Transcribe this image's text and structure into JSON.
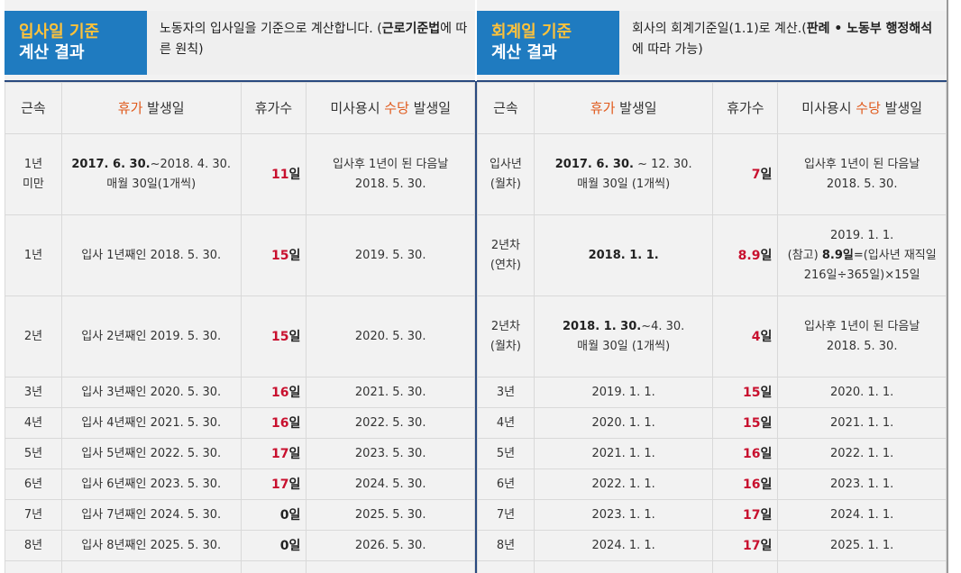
{
  "left": {
    "title_accent": "입사일 기준",
    "title_rest": "계산 결과",
    "desc_pre": "노동자의 입사일을 기준으로 계산합니다. (",
    "desc_bold": "근로기준법",
    "desc_post": "에 따른 원칙)",
    "headers": {
      "tenure": "근속",
      "leave_date_red": "휴가",
      "leave_date_rest": " 발생일",
      "days": "휴가수",
      "pay_pre": "미사용시 ",
      "pay_red": "수당",
      "pay_post": " 발생일"
    },
    "rows": [
      {
        "tenure": [
          "1년",
          "미만"
        ],
        "date_bold": "2017. 6. 30.",
        "date_rest": "~2018. 4. 30.",
        "date_line2": "매월 30일(1개씩)",
        "days": "11",
        "unit": "일",
        "pay": [
          "입사후 1년이 된 다음날",
          "2018. 5. 30."
        ]
      },
      {
        "tenure": [
          "1년"
        ],
        "date": "입사 1년째인 2018. 5. 30.",
        "days": "15",
        "unit": "일",
        "pay": [
          "2019. 5. 30."
        ]
      },
      {
        "tenure": [
          "2년"
        ],
        "date": "입사 2년째인 2019. 5. 30.",
        "days": "15",
        "unit": "일",
        "pay": [
          "2020. 5. 30."
        ]
      },
      {
        "tenure": [
          "3년"
        ],
        "date": "입사 3년째인 2020. 5. 30.",
        "days": "16",
        "unit": "일",
        "pay": [
          "2021. 5. 30."
        ]
      },
      {
        "tenure": [
          "4년"
        ],
        "date": "입사 4년째인 2021. 5. 30.",
        "days": "16",
        "unit": "일",
        "pay": [
          "2022. 5. 30."
        ]
      },
      {
        "tenure": [
          "5년"
        ],
        "date": "입사 5년째인 2022. 5. 30.",
        "days": "17",
        "unit": "일",
        "pay": [
          "2023. 5. 30."
        ]
      },
      {
        "tenure": [
          "6년"
        ],
        "date": "입사 6년째인 2023. 5. 30.",
        "days": "17",
        "unit": "일",
        "pay": [
          "2024. 5. 30."
        ]
      },
      {
        "tenure": [
          "7년"
        ],
        "date": "입사 7년째인 2024. 5. 30.",
        "days": "0",
        "unit": "일",
        "pay": [
          "2025. 5. 30."
        ]
      },
      {
        "tenure": [
          "8년"
        ],
        "date": "입사 8년째인 2025. 5. 30.",
        "days": "0",
        "unit": "일",
        "pay": [
          "2026. 5. 30."
        ]
      },
      {
        "tenure": [
          ""
        ],
        "date": "",
        "days": "",
        "unit": "",
        "pay": [
          ""
        ]
      }
    ]
  },
  "right": {
    "title_accent": "회계일 기준",
    "title_rest": "계산 결과",
    "desc_pre": "회사의 회계기준일(1.1)로 계산.(",
    "desc_bold": "판례 • 노동부 행정해석",
    "desc_post": "에 따라 가능)",
    "headers": {
      "tenure": "근속",
      "leave_date_red": "휴가",
      "leave_date_rest": " 발생일",
      "days": "휴가수",
      "pay_pre": "미사용시 ",
      "pay_red": "수당",
      "pay_post": " 발생일"
    },
    "rows": [
      {
        "tenure": [
          "입사년",
          "(월차)"
        ],
        "date_bold": "2017. 6. 30.",
        "date_rest": " ~ 12. 30.",
        "date_line2": "매월 30일 (1개씩)",
        "days": "7",
        "unit": "일",
        "pay": [
          "입사후 1년이 된 다음날",
          "2018. 5. 30."
        ]
      },
      {
        "tenure": [
          "2년차",
          "(연차)"
        ],
        "date_bold": "2018. 1. 1.",
        "date_rest": "",
        "date_line2": "",
        "days": "8.9",
        "unit": "일",
        "pay": [
          "2019. 1. 1."
        ],
        "pay_note_pre": "(참고) ",
        "pay_note_bold": "8.9일",
        "pay_note_post": "=(입사년 재직일",
        "pay_note_line": "216일÷365일)×15일"
      },
      {
        "tenure": [
          "2년차",
          "(월차)"
        ],
        "date_bold": "2018. 1. 30.",
        "date_rest": "~4. 30.",
        "date_line2": "매월 30일 (1개씩)",
        "days": "4",
        "unit": "일",
        "pay": [
          "입사후 1년이 된 다음날",
          "2018. 5. 30."
        ]
      },
      {
        "tenure": [
          "3년"
        ],
        "date": "2019. 1. 1.",
        "days": "15",
        "unit": "일",
        "pay": [
          "2020. 1. 1."
        ]
      },
      {
        "tenure": [
          "4년"
        ],
        "date": "2020. 1. 1.",
        "days": "15",
        "unit": "일",
        "pay": [
          "2021. 1. 1."
        ]
      },
      {
        "tenure": [
          "5년"
        ],
        "date": "2021. 1. 1.",
        "days": "16",
        "unit": "일",
        "pay": [
          "2022. 1. 1."
        ]
      },
      {
        "tenure": [
          "6년"
        ],
        "date": "2022. 1. 1.",
        "days": "16",
        "unit": "일",
        "pay": [
          "2023. 1. 1."
        ]
      },
      {
        "tenure": [
          "7년"
        ],
        "date": "2023. 1. 1.",
        "days": "17",
        "unit": "일",
        "pay": [
          "2024. 1. 1."
        ]
      },
      {
        "tenure": [
          "8년"
        ],
        "date": "2024. 1. 1.",
        "days": "17",
        "unit": "일",
        "pay": [
          "2025. 1. 1."
        ]
      },
      {
        "tenure": [
          ""
        ],
        "date": "",
        "days": "",
        "unit": "",
        "pay": [
          ""
        ]
      }
    ]
  }
}
